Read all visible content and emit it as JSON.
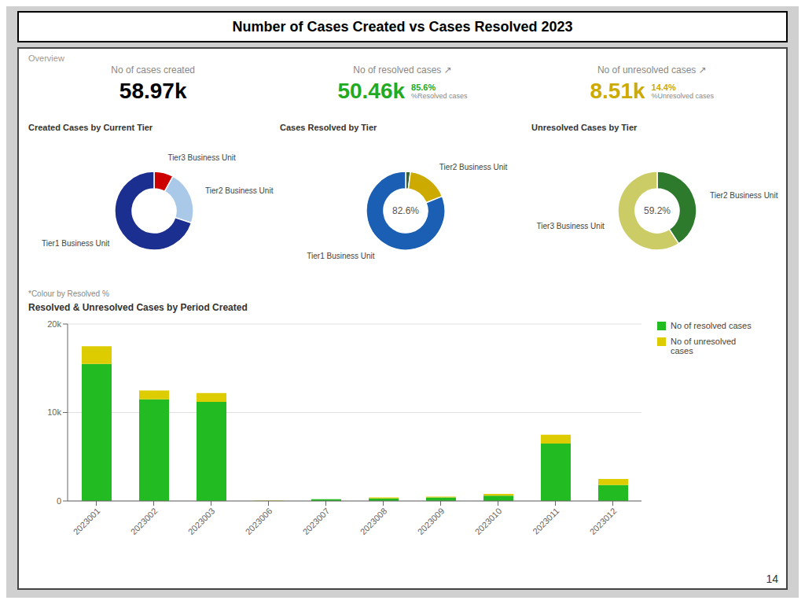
{
  "title": "Number of Cases Created vs Cases Resolved 2023",
  "annotations": [
    {
      "text": "Overview"
    },
    {
      "text": "No of cases created"
    },
    {
      "text": "58.97k",
      "color": "#000000"
    },
    {
      "text": "No of resolved cases ↗"
    },
    {
      "text": "50.46k",
      "color": "#22aa22"
    },
    {
      "text": "85.6%",
      "color": "#22aa22"
    },
    {
      "text": "%Resolved cases"
    },
    {
      "text": "No of unresolved cases ↗"
    },
    {
      "text": "8.51k",
      "color": "#ccaa00"
    },
    {
      "text": "14.4%",
      "color": "#ccaa00"
    },
    {
      "text": "%Unresolved cases"
    },
    {
      "text": "*Colour by Resolved %"
    },
    {
      "text": "14"
    }
  ],
  "chart_data": [
    {
      "type": "pie",
      "title": "Created Cases by Current Tier",
      "categories": [
        "Tier3 Business Unit",
        "Tier2 Business Unit",
        "Tier1 Business Unit"
      ],
      "values": [
        8,
        22,
        70
      ],
      "colors": [
        "#cc0000",
        "#aac8e8",
        "#1a2f8f"
      ]
    },
    {
      "type": "pie",
      "title": "Cases Resolved by Tier",
      "categories": [
        null,
        "Tier2 Business Unit",
        "Tier1 Business Unit"
      ],
      "values": [
        2.0,
        17.4,
        82.6
      ],
      "colors": [
        "#336633",
        "#ccaa00",
        "#1a5fb4"
      ],
      "annotations": [
        "82.6%"
      ]
    },
    {
      "type": "pie",
      "title": "Unresolved Cases by Tier",
      "categories": [
        "Tier2 Business Unit",
        "Tier3 Business Unit"
      ],
      "values": [
        40.8,
        59.2
      ],
      "colors": [
        "#2d7a2d",
        "#cccc66"
      ],
      "annotations": [
        "59.2%"
      ]
    },
    {
      "type": "bar",
      "title": "Resolved & Unresolved Cases by Period Created",
      "categories": [
        "2023001",
        "2023002",
        "2023003",
        "2023006",
        "2023007",
        "2023008",
        "2023009",
        "2023010",
        "2023011",
        "2023012"
      ],
      "series": [
        {
          "name": "No of resolved cases",
          "color": "#22bb22",
          "values": [
            15500,
            11500,
            11200,
            0,
            200,
            300,
            400,
            600,
            6500,
            1800
          ]
        },
        {
          "name": "No of unresolved\ncases",
          "color": "#ddcc00",
          "values": [
            2000,
            1000,
            1000,
            50,
            0,
            100,
            100,
            200,
            1000,
            700
          ]
        }
      ],
      "stacked": true,
      "ylim": [
        0,
        20000
      ],
      "yticks": [
        0,
        {
          "value": 10000,
          "label": "10k"
        },
        {
          "value": 20000,
          "label": "20k"
        }
      ],
      "grid": true,
      "legend": "upper right"
    }
  ]
}
